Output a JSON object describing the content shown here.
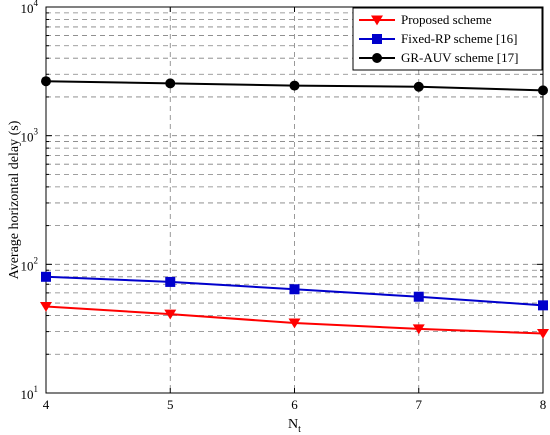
{
  "chart_data": {
    "type": "line",
    "x": [
      4,
      5,
      6,
      7,
      8
    ],
    "xlabel": "N",
    "xlabel_sub": "t",
    "ylabel": "Average horizontal delay (s)",
    "xlim": [
      4,
      8
    ],
    "ylim": [
      10,
      10000
    ],
    "yscale": "log",
    "grid": true,
    "legend_position": "top-right",
    "xticks": [
      "4",
      "5",
      "6",
      "7",
      "8"
    ],
    "yticks": [
      {
        "base": "10",
        "exp": "1",
        "value": 10
      },
      {
        "base": "10",
        "exp": "2",
        "value": 100
      },
      {
        "base": "10",
        "exp": "3",
        "value": 1000
      },
      {
        "base": "10",
        "exp": "4",
        "value": 10000
      }
    ],
    "series": [
      {
        "name": "Proposed scheme",
        "color": "#ff0000",
        "marker": "triangle-down",
        "values": [
          47,
          41,
          35,
          31.5,
          29
        ]
      },
      {
        "name": "Fixed-RP scheme [16]",
        "color": "#0000cc",
        "marker": "square",
        "values": [
          80,
          73,
          64,
          56,
          48
        ]
      },
      {
        "name": "GR-AUV scheme [17]",
        "color": "#000000",
        "marker": "circle",
        "values": [
          2650,
          2550,
          2450,
          2400,
          2250
        ]
      }
    ]
  }
}
